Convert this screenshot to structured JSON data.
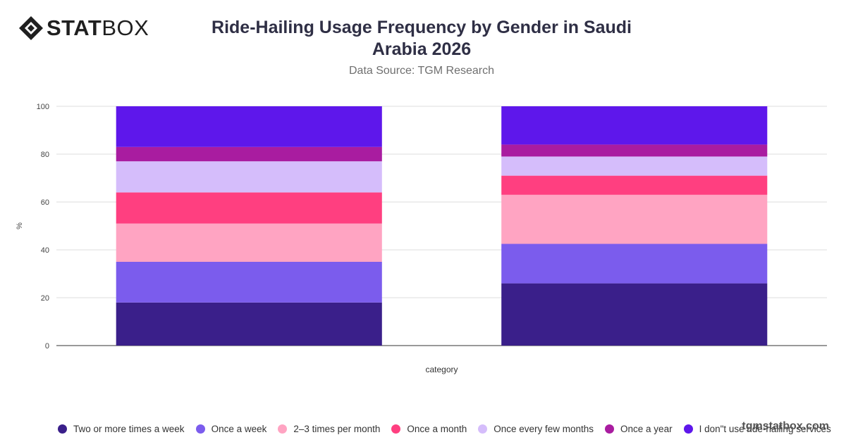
{
  "brand": {
    "logo_bold": "STAT",
    "logo_light": "BOX",
    "watermark": "tgmstatbox.com"
  },
  "header": {
    "title": "Ride-Hailing Usage Frequency by Gender in Saudi Arabia 2026",
    "subtitle": "Data Source: TGM Research"
  },
  "chart_data": {
    "type": "bar",
    "stacked": true,
    "title": "Ride-Hailing Usage Frequency by Gender in Saudi Arabia 2026",
    "subtitle": "Data Source: TGM Research",
    "xlabel": "category",
    "ylabel": "%",
    "ylim": [
      0,
      100
    ],
    "yticks": [
      0,
      20,
      40,
      60,
      80,
      100
    ],
    "grid": true,
    "legend_position": "bottom",
    "categories": [
      "",
      ""
    ],
    "series": [
      {
        "name": "Two or more times a week",
        "color": "#3a1f8a",
        "values": [
          18,
          26
        ]
      },
      {
        "name": "Once a week",
        "color": "#7b5ced",
        "values": [
          17,
          16.5
        ]
      },
      {
        "name": "2–3 times per month",
        "color": "#ffa4c2",
        "values": [
          16,
          20.5
        ]
      },
      {
        "name": "Once a month",
        "color": "#ff3f80",
        "values": [
          13,
          8
        ]
      },
      {
        "name": "Once every few months",
        "color": "#d5bdfb",
        "values": [
          13,
          8
        ]
      },
      {
        "name": "Once a year",
        "color": "#a91ca0",
        "values": [
          6,
          5
        ]
      },
      {
        "name": "I don\"t use ride-hailing services",
        "color": "#5e17eb",
        "values": [
          17,
          16
        ]
      }
    ]
  }
}
